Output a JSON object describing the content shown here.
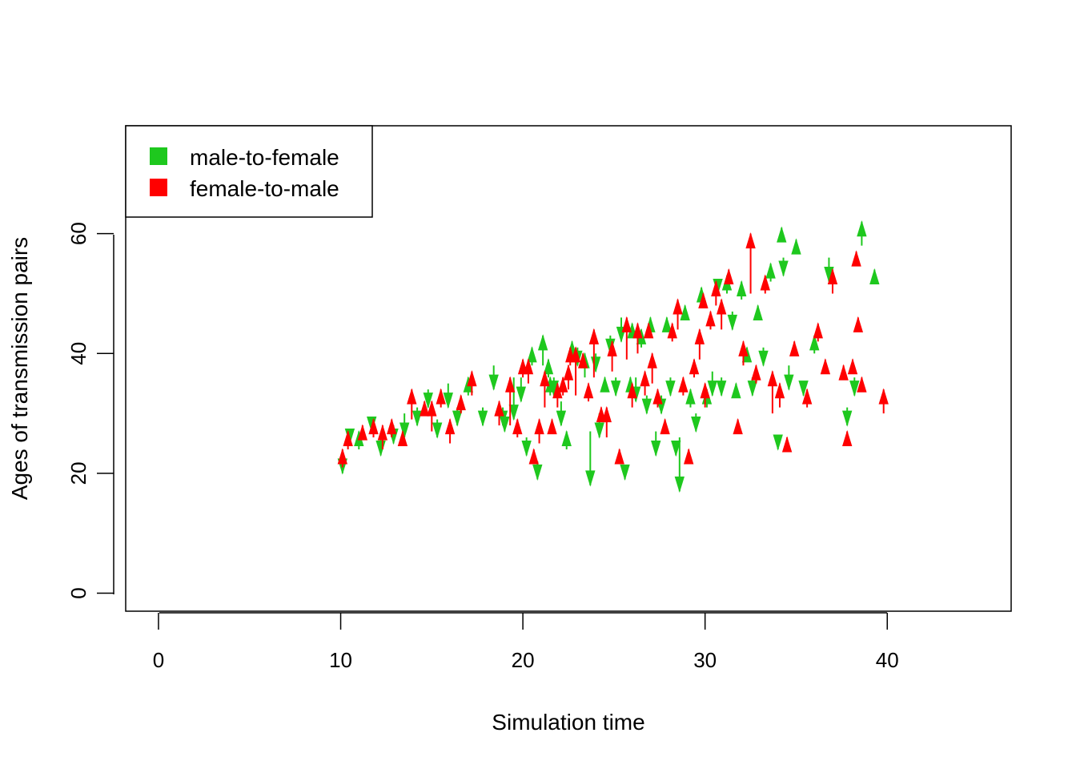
{
  "chart_data": {
    "type": "scatter",
    "title": "",
    "xlabel": "Simulation time",
    "ylabel": "Ages of transmission pairs",
    "xlim": [
      -1.8,
      46.8
    ],
    "ylim": [
      -3,
      78
    ],
    "x_ticks": [
      "0",
      "10",
      "20",
      "30",
      "40"
    ],
    "y_ticks": [
      "0",
      "20",
      "40",
      "60"
    ],
    "grid": false,
    "legend_position": "top-left",
    "series": [
      {
        "name": "male-to-female",
        "color": "#1ec81e",
        "marker": "arrow",
        "points": [
          [
            10.1,
            23,
            20
          ],
          [
            10.5,
            27,
            25
          ],
          [
            11.0,
            24,
            27
          ],
          [
            11.7,
            29,
            27
          ],
          [
            12.2,
            26,
            23
          ],
          [
            12.9,
            28,
            25
          ],
          [
            13.5,
            30,
            26
          ],
          [
            14.2,
            31,
            28
          ],
          [
            14.8,
            34,
            31
          ],
          [
            15.3,
            29,
            26
          ],
          [
            15.9,
            35,
            31
          ],
          [
            16.4,
            31,
            28
          ],
          [
            17.0,
            33,
            36
          ],
          [
            17.8,
            31,
            28
          ],
          [
            18.4,
            38,
            34
          ],
          [
            18.9,
            31,
            28
          ],
          [
            19.5,
            36,
            29
          ],
          [
            19.9,
            36,
            32
          ],
          [
            20.2,
            26,
            23
          ],
          [
            20.5,
            38,
            41
          ],
          [
            20.8,
            22,
            19
          ],
          [
            21.1,
            38,
            43
          ],
          [
            21.4,
            36,
            39
          ],
          [
            21.7,
            36,
            33
          ],
          [
            22.1,
            32,
            28
          ],
          [
            22.4,
            24,
            27
          ],
          [
            22.7,
            39,
            42
          ],
          [
            23.0,
            41,
            38
          ],
          [
            23.4,
            36,
            40
          ],
          [
            23.7,
            27,
            18
          ],
          [
            24.0,
            40,
            37
          ],
          [
            24.2,
            30,
            26
          ],
          [
            24.5,
            34,
            36
          ],
          [
            24.8,
            43,
            40
          ],
          [
            25.1,
            36,
            33
          ],
          [
            25.4,
            46,
            42
          ],
          [
            25.6,
            21,
            19
          ],
          [
            25.9,
            33,
            36
          ],
          [
            26.2,
            36,
            32
          ],
          [
            26.5,
            41,
            44
          ],
          [
            26.8,
            33,
            30
          ],
          [
            27.0,
            44,
            46
          ],
          [
            27.3,
            27,
            23
          ],
          [
            27.6,
            33,
            30
          ],
          [
            27.9,
            44,
            46
          ],
          [
            28.1,
            36,
            33
          ],
          [
            28.4,
            25,
            23
          ],
          [
            28.6,
            26,
            17
          ],
          [
            28.9,
            46,
            48
          ],
          [
            29.2,
            31,
            34
          ],
          [
            29.5,
            30,
            27
          ],
          [
            29.8,
            49,
            51
          ],
          [
            30.1,
            31,
            34
          ],
          [
            30.4,
            37,
            33
          ],
          [
            30.7,
            52,
            50
          ],
          [
            30.9,
            36,
            33
          ],
          [
            31.2,
            50,
            53
          ],
          [
            31.5,
            47,
            44
          ],
          [
            31.7,
            33,
            35
          ],
          [
            32.0,
            49,
            52
          ],
          [
            32.3,
            39,
            41
          ],
          [
            32.6,
            36,
            33
          ],
          [
            32.9,
            47,
            48
          ],
          [
            33.2,
            41,
            38
          ],
          [
            33.6,
            52,
            55
          ],
          [
            34.0,
            26,
            24
          ],
          [
            34.3,
            56,
            53
          ],
          [
            34.6,
            38,
            34
          ],
          [
            35.0,
            57,
            59
          ],
          [
            35.4,
            35,
            33
          ],
          [
            36.0,
            40,
            43
          ],
          [
            36.8,
            56,
            52
          ],
          [
            37.8,
            31,
            28
          ],
          [
            38.2,
            36,
            33
          ],
          [
            38.6,
            58,
            62
          ],
          [
            39.3,
            52,
            54
          ],
          [
            34.2,
            60,
            61
          ],
          [
            21.5,
            33,
            36
          ],
          [
            19.0,
            29,
            27
          ],
          [
            26.0,
            43,
            45
          ]
        ]
      },
      {
        "name": "female-to-male",
        "color": "#ff0000",
        "marker": "arrow",
        "points": [
          [
            10.1,
            21,
            24
          ],
          [
            10.4,
            24,
            27
          ],
          [
            11.2,
            26,
            28
          ],
          [
            11.8,
            26,
            29
          ],
          [
            12.3,
            24,
            28
          ],
          [
            12.8,
            26,
            29
          ],
          [
            13.4,
            25,
            27
          ],
          [
            13.9,
            29,
            34
          ],
          [
            14.6,
            30,
            32
          ],
          [
            15.0,
            27,
            32
          ],
          [
            15.5,
            31,
            34
          ],
          [
            16.0,
            25,
            29
          ],
          [
            16.6,
            30,
            33
          ],
          [
            17.2,
            33,
            37
          ],
          [
            18.7,
            28,
            32
          ],
          [
            19.3,
            28,
            36
          ],
          [
            19.7,
            26,
            29
          ],
          [
            20.3,
            35,
            39
          ],
          [
            20.6,
            22,
            24
          ],
          [
            20.9,
            25,
            29
          ],
          [
            21.2,
            31,
            37
          ],
          [
            21.6,
            27,
            29
          ],
          [
            21.9,
            31,
            35
          ],
          [
            22.2,
            33,
            36
          ],
          [
            22.5,
            34,
            38
          ],
          [
            22.9,
            33,
            41
          ],
          [
            23.3,
            38,
            40
          ],
          [
            23.6,
            32,
            35
          ],
          [
            23.9,
            36,
            44
          ],
          [
            24.3,
            30,
            31
          ],
          [
            24.6,
            26,
            31
          ],
          [
            24.9,
            37,
            42
          ],
          [
            25.3,
            22,
            24
          ],
          [
            25.7,
            39,
            46
          ],
          [
            26.0,
            31,
            35
          ],
          [
            26.3,
            40,
            45
          ],
          [
            26.7,
            33,
            37
          ],
          [
            27.1,
            35,
            40
          ],
          [
            27.4,
            31,
            34
          ],
          [
            27.8,
            27,
            29
          ],
          [
            28.2,
            42,
            45
          ],
          [
            28.5,
            44,
            49
          ],
          [
            28.8,
            33,
            36
          ],
          [
            29.1,
            23,
            24
          ],
          [
            29.4,
            36,
            39
          ],
          [
            29.7,
            39,
            44
          ],
          [
            30.0,
            31,
            35
          ],
          [
            30.3,
            44,
            47
          ],
          [
            30.6,
            48,
            52
          ],
          [
            30.9,
            44,
            49
          ],
          [
            31.3,
            52,
            54
          ],
          [
            31.8,
            27,
            29
          ],
          [
            32.1,
            38,
            42
          ],
          [
            32.5,
            50,
            60
          ],
          [
            32.8,
            35,
            38
          ],
          [
            33.3,
            50,
            53
          ],
          [
            33.7,
            30,
            37
          ],
          [
            34.1,
            31,
            35
          ],
          [
            34.5,
            24,
            26
          ],
          [
            34.9,
            40,
            42
          ],
          [
            35.6,
            31,
            34
          ],
          [
            36.2,
            42,
            45
          ],
          [
            36.6,
            37,
            39
          ],
          [
            37.0,
            50,
            54
          ],
          [
            37.6,
            36,
            38
          ],
          [
            37.8,
            26,
            27
          ],
          [
            38.1,
            37,
            39
          ],
          [
            38.3,
            56,
            57
          ],
          [
            38.4,
            44,
            46
          ],
          [
            38.6,
            35,
            36
          ],
          [
            39.8,
            30,
            34
          ],
          [
            20.0,
            36,
            39
          ],
          [
            22.6,
            38,
            41
          ],
          [
            26.9,
            44,
            45
          ],
          [
            29.9,
            49,
            50
          ]
        ]
      }
    ]
  }
}
